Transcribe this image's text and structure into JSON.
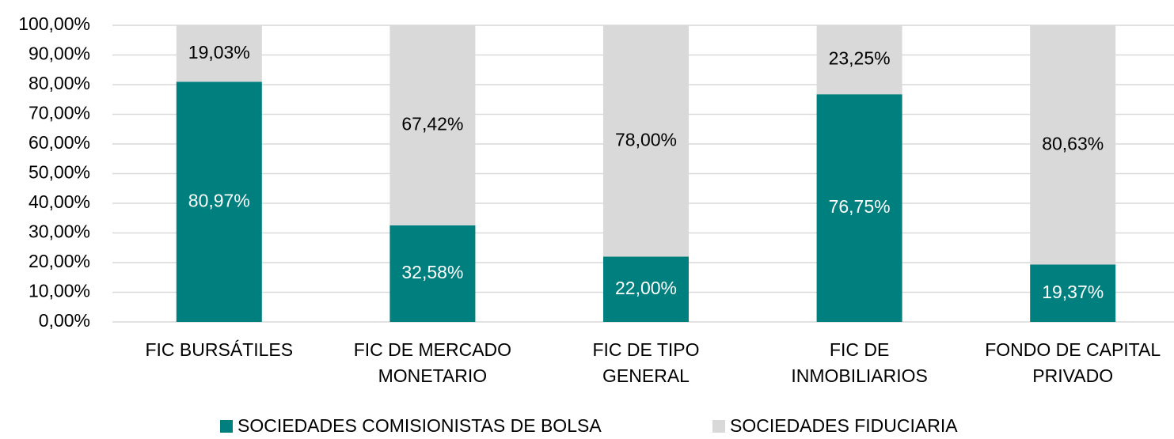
{
  "chart_data": {
    "type": "stacked_bar",
    "categories": [
      "FIC BURSÁTILES",
      "FIC DE MERCADO\nMONETARIO",
      "FIC DE TIPO\nGENERAL",
      "FIC DE\nINMOBILIARIOS",
      "FONDO DE CAPITAL\nPRIVADO"
    ],
    "series": [
      {
        "name": "SOCIEDADES COMISIONISTAS DE BOLSA",
        "color": "#007f7f",
        "values": [
          80.97,
          32.58,
          22.0,
          76.75,
          19.37
        ],
        "value_labels": [
          "80,97%",
          "32,58%",
          "22,00%",
          "76,75%",
          "19,37%"
        ]
      },
      {
        "name": "SOCIEDADES FIDUCIARIA",
        "color": "#d9d9d9",
        "values": [
          19.03,
          67.42,
          78.0,
          23.25,
          80.63
        ],
        "value_labels": [
          "19,03%",
          "67,42%",
          "78,00%",
          "23,25%",
          "80,63%"
        ]
      }
    ],
    "ylim": [
      0,
      100
    ],
    "yticks": [
      {
        "value": 0,
        "label": "0,00%"
      },
      {
        "value": 10,
        "label": "10,00%"
      },
      {
        "value": 20,
        "label": "20,00%"
      },
      {
        "value": 30,
        "label": "30,00%"
      },
      {
        "value": 40,
        "label": "40,00%"
      },
      {
        "value": 50,
        "label": "50,00%"
      },
      {
        "value": 60,
        "label": "60,00%"
      },
      {
        "value": 70,
        "label": "70,00%"
      },
      {
        "value": 80,
        "label": "80,00%"
      },
      {
        "value": 90,
        "label": "90,00%"
      },
      {
        "value": 100,
        "label": "100,00%"
      }
    ],
    "grid": true,
    "legend": "bottom"
  }
}
